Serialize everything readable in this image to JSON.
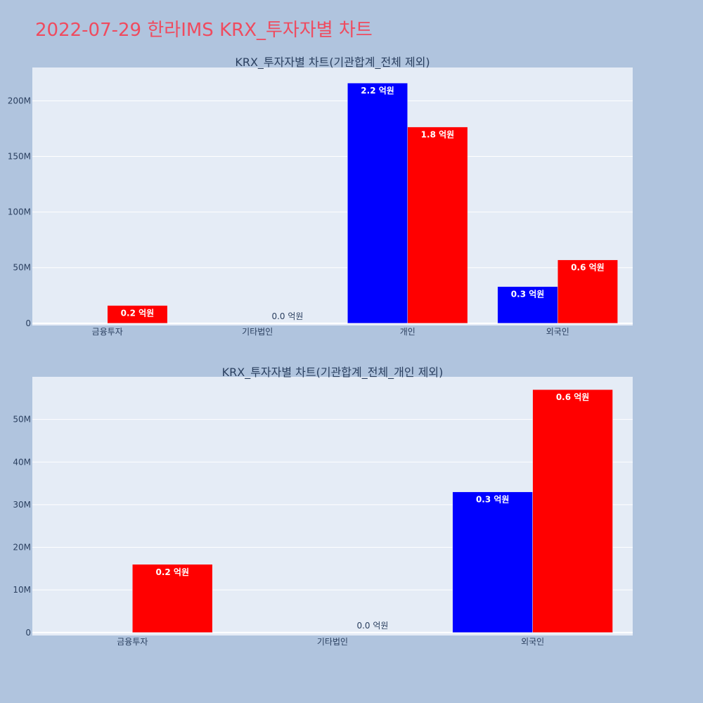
{
  "page": {
    "title": "2022-07-29 한라IMS KRX_투자자별 차트",
    "title_color": "#ef4b5f",
    "background": "#b0c4de"
  },
  "chart_data": [
    {
      "type": "bar",
      "title": "KRX_투자자별 차트(기관합계_전체 제외)",
      "categories": [
        "금융투자",
        "기타법인",
        "개인",
        "외국인"
      ],
      "series": [
        {
          "color": "#0000ff",
          "values": [
            0,
            0,
            216000000,
            33000000
          ],
          "labels": [
            "",
            "",
            "2.2 억원",
            "0.3 억원"
          ]
        },
        {
          "color": "#ff0000",
          "values": [
            16000000,
            0,
            176500000,
            57000000
          ],
          "labels": [
            "0.2 억원",
            "0.0 억원",
            "1.8 억원",
            "0.6 억원"
          ]
        }
      ],
      "ylim": [
        -2000000,
        230000000
      ],
      "yticks": [
        0,
        50000000,
        100000000,
        150000000,
        200000000
      ],
      "ytick_labels": [
        "0",
        "50M",
        "100M",
        "150M",
        "200M"
      ],
      "grid": true,
      "plot_bg": "#e5ecf6"
    },
    {
      "type": "bar",
      "title": "KRX_투자자별 차트(기관합계_전체_개인 제외)",
      "categories": [
        "금융투자",
        "기타법인",
        "외국인"
      ],
      "series": [
        {
          "color": "#0000ff",
          "values": [
            0,
            0,
            33000000
          ],
          "labels": [
            "",
            "",
            "0.3 억원"
          ]
        },
        {
          "color": "#ff0000",
          "values": [
            16000000,
            0,
            57000000
          ],
          "labels": [
            "0.2 억원",
            "0.0 억원",
            "0.6 억원"
          ]
        }
      ],
      "ylim": [
        -700000,
        60000000
      ],
      "yticks": [
        0,
        10000000,
        20000000,
        30000000,
        40000000,
        50000000
      ],
      "ytick_labels": [
        "0",
        "10M",
        "20M",
        "30M",
        "40M",
        "50M"
      ],
      "grid": true,
      "plot_bg": "#e5ecf6"
    }
  ]
}
